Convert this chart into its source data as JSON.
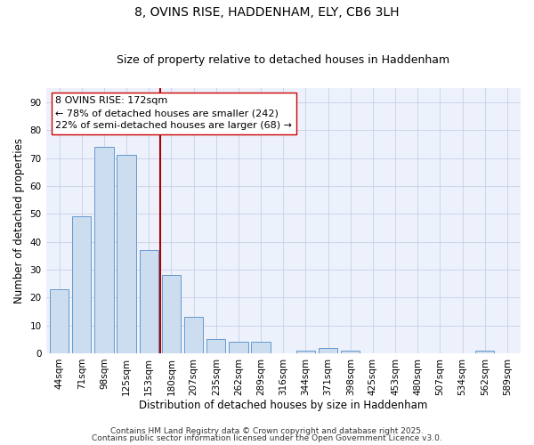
{
  "title": "8, OVINS RISE, HADDENHAM, ELY, CB6 3LH",
  "subtitle": "Size of property relative to detached houses in Haddenham",
  "xlabel": "Distribution of detached houses by size in Haddenham",
  "ylabel": "Number of detached properties",
  "categories": [
    "44sqm",
    "71sqm",
    "98sqm",
    "125sqm",
    "153sqm",
    "180sqm",
    "207sqm",
    "235sqm",
    "262sqm",
    "289sqm",
    "316sqm",
    "344sqm",
    "371sqm",
    "398sqm",
    "425sqm",
    "453sqm",
    "480sqm",
    "507sqm",
    "534sqm",
    "562sqm",
    "589sqm"
  ],
  "values": [
    23,
    49,
    74,
    71,
    37,
    28,
    13,
    5,
    4,
    4,
    0,
    1,
    2,
    1,
    0,
    0,
    0,
    0,
    0,
    1,
    0
  ],
  "bar_color": "#ccddf0",
  "bar_edge_color": "#6699cc",
  "vline_x": 4.5,
  "vline_color": "#aa0000",
  "annotation_title": "8 OVINS RISE: 172sqm",
  "annotation_line1": "← 78% of detached houses are smaller (242)",
  "annotation_line2": "22% of semi-detached houses are larger (68) →",
  "ylim": [
    0,
    95
  ],
  "yticks": [
    0,
    10,
    20,
    30,
    40,
    50,
    60,
    70,
    80,
    90
  ],
  "background_color": "#edf1fc",
  "grid_color": "#c8cfe8",
  "footer1": "Contains HM Land Registry data © Crown copyright and database right 2025.",
  "footer2": "Contains public sector information licensed under the Open Government Licence v3.0.",
  "title_fontsize": 10,
  "subtitle_fontsize": 9,
  "label_fontsize": 8.5,
  "tick_fontsize": 7.5,
  "annotation_fontsize": 8,
  "footer_fontsize": 6.5
}
